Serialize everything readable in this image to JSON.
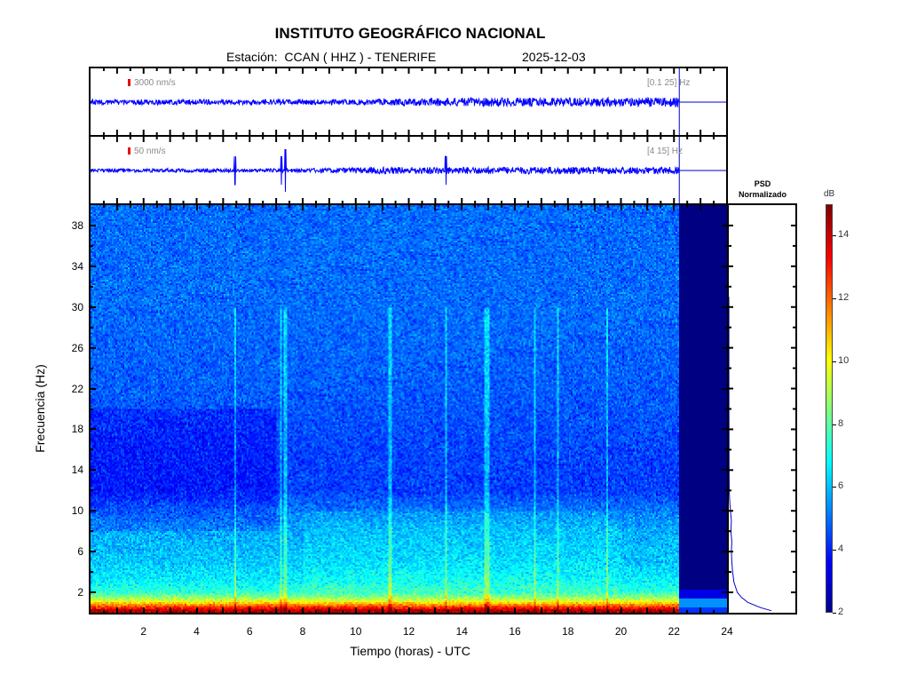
{
  "header": {
    "title": "INSTITUTO GEOGRÁFICO NACIONAL",
    "station_line": "Estación:  CCAN ( HHZ ) - TENERIFE",
    "date": "2025-12-03"
  },
  "traces": [
    {
      "scale_label": "3000 nm/s",
      "band_label": "[0.1 25] Hz",
      "base_amp": 3,
      "late_amp": 5,
      "events": []
    },
    {
      "scale_label": "50 nm/s",
      "band_label": "[4 15] Hz",
      "base_amp": 2,
      "late_amp": 4,
      "events": [
        5.45,
        7.2,
        7.35,
        13.4
      ]
    }
  ],
  "psd_panel": {
    "title_line1": "PSD",
    "title_line2": "Normalizado"
  },
  "colorbar": {
    "unit": "dB",
    "ticks": [
      "2",
      "4",
      "6",
      "8",
      "10",
      "12",
      "14"
    ],
    "range": [
      2,
      15
    ]
  },
  "chart_data": {
    "type": "heatmap",
    "title": "INSTITUTO GEOGRÁFICO NACIONAL",
    "xlabel": "Tiempo (horas) - UTC",
    "ylabel": "Frecuencia  (Hz)",
    "xlim": [
      0,
      24
    ],
    "ylim": [
      0,
      40
    ],
    "x_ticks": [
      "2",
      "4",
      "6",
      "8",
      "10",
      "12",
      "14",
      "16",
      "18",
      "20",
      "22",
      "24"
    ],
    "y_ticks": [
      "2",
      "6",
      "10",
      "14",
      "18",
      "22",
      "26",
      "30",
      "34",
      "38"
    ],
    "data_end_hour": 22.2,
    "colorscale": "jet",
    "clim_db": [
      2,
      15
    ],
    "mean_db_by_freq": [
      [
        0.2,
        14.5
      ],
      [
        0.6,
        12.5
      ],
      [
        1.2,
        9.5
      ],
      [
        2,
        7.5
      ],
      [
        3,
        6.8
      ],
      [
        5,
        6.2
      ],
      [
        8,
        5.8
      ],
      [
        10,
        5.2
      ],
      [
        12,
        4.4
      ],
      [
        16,
        4.5
      ],
      [
        22,
        4.8
      ],
      [
        30,
        5.0
      ],
      [
        40,
        5.0
      ]
    ],
    "transient_lines_hours": [
      5.45,
      7.2,
      7.35,
      11.3,
      13.4,
      14.9,
      15.0,
      16.75,
      17.6,
      19.5
    ],
    "psd_normalized": [
      [
        0.2,
        1.0
      ],
      [
        0.5,
        0.75
      ],
      [
        1,
        0.45
      ],
      [
        1.5,
        0.3
      ],
      [
        2,
        0.2
      ],
      [
        3,
        0.12
      ],
      [
        4,
        0.09
      ],
      [
        5,
        0.07
      ],
      [
        6,
        0.06
      ],
      [
        7,
        0.07
      ],
      [
        8,
        0.05
      ],
      [
        9,
        0.06
      ],
      [
        10,
        0.04
      ],
      [
        11,
        0.02
      ],
      [
        12,
        0.01
      ],
      [
        14,
        0.006
      ],
      [
        18,
        0.004
      ],
      [
        24,
        0.003
      ],
      [
        30,
        0.002
      ],
      [
        31,
        0.0
      ]
    ]
  }
}
